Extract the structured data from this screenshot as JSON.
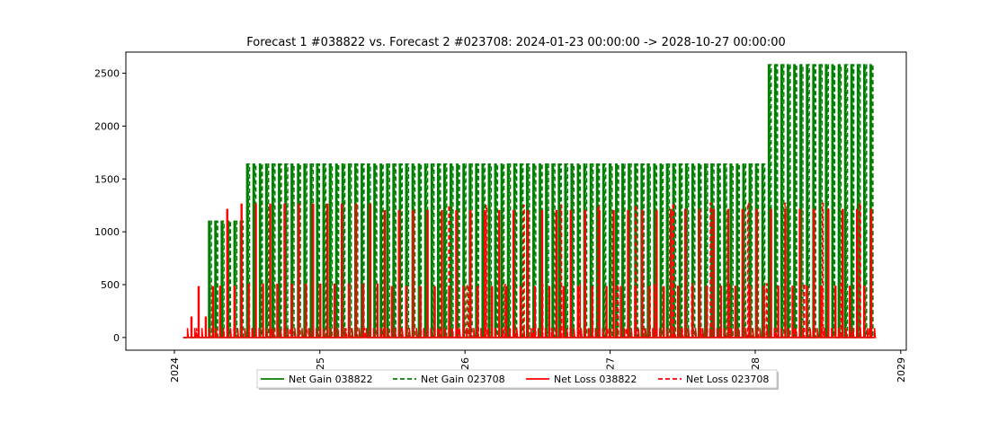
{
  "chart_data": {
    "type": "line",
    "title": "Forecast 1 #038822 vs. Forecast 2 #023708: 2024-01-23 00:00:00 -> 2028-10-27 00:00:00",
    "xlabel": "",
    "ylabel": "",
    "xlim": [
      "2023-09-01",
      "2029-01-15"
    ],
    "ylim": [
      -120,
      2700
    ],
    "x_ticks": [
      {
        "value": "2024-01-01",
        "label": "2024"
      },
      {
        "value": "2025-01-01",
        "label": "25"
      },
      {
        "value": "2026-01-01",
        "label": "26"
      },
      {
        "value": "2027-01-01",
        "label": "27"
      },
      {
        "value": "2028-01-01",
        "label": "28"
      },
      {
        "value": "2029-01-01",
        "label": "2029"
      }
    ],
    "y_ticks": [
      0,
      500,
      1000,
      1500,
      2000,
      2500
    ],
    "grid": false,
    "legend_position": "bottom-center",
    "series": [
      {
        "name": "Net Gain 038822",
        "color": "#008000",
        "style": "solid",
        "data": [
          {
            "x": "2024-01-23",
            "y": 0
          },
          {
            "x": "2024-03-25",
            "y": 1100
          },
          {
            "x": "2024-06-30",
            "y": 1100
          },
          {
            "x": "2024-07-01",
            "y": 1640
          },
          {
            "x": "2025-12-31",
            "y": 1640
          },
          {
            "x": "2027-12-31",
            "y": 1640
          },
          {
            "x": "2028-02-01",
            "y": 2580
          },
          {
            "x": "2028-10-27",
            "y": 2580
          }
        ]
      },
      {
        "name": "Net Gain 023708",
        "color": "#008000",
        "style": "dashed",
        "data": [
          {
            "x": "2024-01-23",
            "y": 0
          },
          {
            "x": "2024-03-25",
            "y": 1100
          },
          {
            "x": "2024-06-30",
            "y": 1100
          },
          {
            "x": "2024-07-01",
            "y": 1640
          },
          {
            "x": "2027-12-31",
            "y": 1640
          },
          {
            "x": "2028-02-01",
            "y": 2580
          },
          {
            "x": "2028-10-27",
            "y": 2580
          }
        ]
      },
      {
        "name": "Net Loss 038822",
        "color": "#ff0000",
        "style": "solid",
        "data": [
          {
            "x": "2024-01-23",
            "y": 0
          },
          {
            "x": "2024-02-10",
            "y": 480
          },
          {
            "x": "2024-04-15",
            "y": 1210
          },
          {
            "x": "2024-06-01",
            "y": 1260
          },
          {
            "x": "2025-06-01",
            "y": 1200
          },
          {
            "x": "2027-06-01",
            "y": 1210
          },
          {
            "x": "2028-10-27",
            "y": 1210
          }
        ]
      },
      {
        "name": "Net Loss 023708",
        "color": "#ff0000",
        "style": "dashed",
        "data": [
          {
            "x": "2024-01-23",
            "y": 0
          },
          {
            "x": "2025-11-20",
            "y": 1250
          },
          {
            "x": "2027-05-01",
            "y": 1270
          },
          {
            "x": "2028-10-27",
            "y": 1200
          }
        ]
      }
    ]
  }
}
